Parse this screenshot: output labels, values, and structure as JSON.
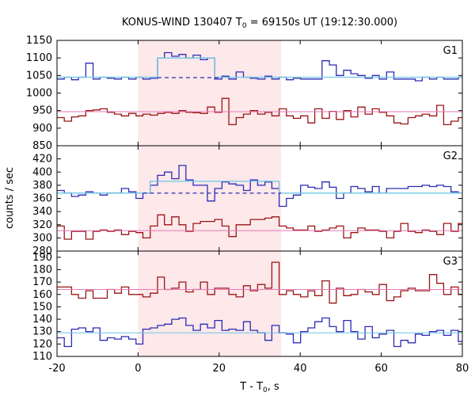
{
  "chart_data": {
    "type": "line",
    "title": "KONUS-WIND 130407 T",
    "title_sub": "0",
    "title_rest": " = 69150s UT (19:12:30.000)",
    "xlabel": "T - T",
    "xlabel_sub": "0",
    "xlabel_rest": ", s",
    "ylabel": "counts / sec",
    "xlim": [
      -20,
      80
    ],
    "x_ticks": [
      "-20",
      "0",
      "20",
      "40",
      "60",
      "80"
    ],
    "x_tick_values": [
      -20,
      0,
      20,
      40,
      60,
      80
    ],
    "shaded_interval": [
      0,
      35.3
    ],
    "colors": {
      "blue": "#2b2bb5",
      "red": "#9b1414",
      "cyan": "#6ec6e6",
      "pink": "#e67ab8",
      "shade": "#fde8ea"
    },
    "bin_edges": [
      -20,
      -18.2,
      -16.4,
      -14.7,
      -12.9,
      -11.1,
      -9.4,
      -7.6,
      -5.8,
      -4.1,
      -2.3,
      -0.5,
      1.2,
      3.0,
      4.8,
      6.5,
      8.3,
      10.1,
      11.8,
      13.6,
      15.4,
      17.1,
      18.9,
      20.7,
      22.4,
      24.2,
      26.0,
      27.7,
      29.5,
      31.3,
      33.0,
      34.8,
      36.6,
      38.3,
      40.1,
      41.9,
      43.6,
      45.4,
      47.2,
      48.9,
      50.7,
      52.5,
      54.2,
      56.0,
      57.8,
      59.5,
      61.3,
      63.1,
      64.8,
      66.6,
      68.4,
      70.1,
      71.9,
      73.7,
      75.4,
      77.2,
      79.0,
      80
    ],
    "panels": [
      {
        "label": "G1",
        "ylim": [
          850,
          1150
        ],
        "y_ticks": [
          "850",
          "900",
          "950",
          "1000",
          "1050",
          "1100",
          "1150"
        ],
        "y_tick_values": [
          850,
          900,
          950,
          1000,
          1050,
          1100,
          1150
        ],
        "series": [
          {
            "color": "blue",
            "values": [
              1040,
              1045,
              1038,
              1045,
              1085,
              1040,
              1045,
              1042,
              1040,
              1045,
              1040,
              1045,
              1040,
              1042,
              1100,
              1115,
              1105,
              1110,
              1100,
              1108,
              1095,
              1100,
              1040,
              1048,
              1040,
              1060,
              1045,
              1042,
              1040,
              1048,
              1040,
              1045,
              1038,
              1042,
              1040,
              1040,
              1040,
              1092,
              1080,
              1050,
              1065,
              1055,
              1050,
              1042,
              1050,
              1040,
              1060,
              1040,
              1040,
              1040,
              1035,
              1045,
              1040,
              1045,
              1040,
              1040,
              1045
            ]
          },
          {
            "color": "red",
            "values": [
              930,
              920,
              932,
              935,
              950,
              952,
              955,
              945,
              940,
              935,
              942,
              935,
              940,
              937,
              942,
              945,
              942,
              950,
              945,
              944,
              942,
              960,
              945,
              985,
              910,
              930,
              940,
              950,
              940,
              945,
              935,
              955,
              935,
              928,
              935,
              915,
              955,
              928,
              948,
              925,
              950,
              932,
              960,
              940,
              955,
              945,
              935,
              915,
              912,
              930,
              935,
              940,
              935,
              965,
              910,
              920,
              930
            ]
          },
          {
            "color": "cyan",
            "style": "step",
            "values": [
              1045,
              1045,
              1045,
              1045,
              1045,
              1045,
              1045,
              1045,
              1045,
              1045,
              1045,
              1045,
              1045,
              1045,
              1100,
              1100,
              1100,
              1100,
              1100,
              1100,
              1100,
              1100,
              1045,
              1045,
              1045,
              1045,
              1045,
              1045,
              1045,
              1045,
              1045,
              1045,
              1045,
              1045,
              1045,
              1045,
              1045,
              1045,
              1045,
              1045,
              1045,
              1045,
              1045,
              1045,
              1045,
              1045,
              1045,
              1045,
              1045,
              1045,
              1045,
              1045,
              1045,
              1045,
              1045,
              1045,
              1045
            ]
          },
          {
            "color": "pink",
            "style": "flat",
            "values": [
              947
            ]
          },
          {
            "color": "blue",
            "style": "dashed",
            "x_range": [
              4.8,
              20.7
            ],
            "values": [
              1044
            ]
          }
        ]
      },
      {
        "label": "G2",
        "ylim": [
          280,
          440
        ],
        "y_ticks": [
          "280",
          "300",
          "320",
          "340",
          "360",
          "380",
          "400",
          "420"
        ],
        "y_tick_values": [
          280,
          300,
          320,
          340,
          360,
          380,
          400,
          420
        ],
        "series": [
          {
            "color": "blue",
            "values": [
              372,
              368,
              363,
              365,
              370,
              368,
              365,
              368,
              368,
              375,
              370,
              360,
              368,
              380,
              395,
              400,
              390,
              410,
              388,
              380,
              380,
              356,
              375,
              385,
              382,
              380,
              372,
              388,
              380,
              385,
              375,
              348,
              360,
              365,
              380,
              377,
              375,
              385,
              377,
              360,
              368,
              378,
              375,
              370,
              378,
              368,
              375,
              375,
              375,
              378,
              378,
              380,
              378,
              380,
              378,
              370,
              368
            ]
          },
          {
            "color": "red",
            "values": [
              318,
              298,
              310,
              310,
              298,
              310,
              312,
              310,
              312,
              305,
              310,
              308,
              300,
              318,
              335,
              320,
              332,
              320,
              310,
              322,
              325,
              325,
              328,
              318,
              302,
              320,
              320,
              328,
              328,
              330,
              332,
              318,
              315,
              312,
              312,
              318,
              310,
              312,
              315,
              318,
              300,
              308,
              315,
              312,
              312,
              310,
              300,
              310,
              322,
              310,
              308,
              312,
              310,
              305,
              322,
              310,
              322
            ]
          },
          {
            "color": "cyan",
            "style": "step",
            "values": [
              368,
              368,
              368,
              368,
              368,
              368,
              368,
              368,
              368,
              368,
              368,
              368,
              368,
              386,
              386,
              386,
              386,
              386,
              386,
              386,
              386,
              386,
              386,
              386,
              386,
              386,
              386,
              386,
              386,
              386,
              386,
              368,
              368,
              368,
              368,
              368,
              368,
              368,
              368,
              368,
              368,
              368,
              368,
              368,
              368,
              368,
              368,
              368,
              368,
              368,
              368,
              368,
              368,
              368,
              368,
              368,
              368
            ]
          },
          {
            "color": "pink",
            "style": "flat",
            "values": [
              311
            ]
          },
          {
            "color": "blue",
            "style": "dashed",
            "x_range": [
              1.2,
              35.3
            ],
            "values": [
              368
            ]
          }
        ]
      },
      {
        "label": "G3",
        "ylim": [
          110,
          195
        ],
        "y_ticks": [
          "110",
          "120",
          "130",
          "140",
          "150",
          "160",
          "170",
          "180",
          "190"
        ],
        "y_tick_values": [
          110,
          120,
          130,
          140,
          150,
          160,
          170,
          180,
          190
        ],
        "series": [
          {
            "color": "blue",
            "values": [
              125,
              118,
              132,
              133,
              130,
              133,
              123,
              125,
              124,
              126,
              124,
              120,
              132,
              133,
              135,
              136,
              140,
              141,
              135,
              131,
              136,
              133,
              139,
              131,
              132,
              131,
              138,
              131,
              129,
              123,
              135,
              129,
              128,
              121,
              130,
              133,
              138,
              141,
              134,
              130,
              139,
              130,
              124,
              134,
              125,
              128,
              131,
              118,
              123,
              121,
              128,
              127,
              130,
              131,
              127,
              131,
              122
            ]
          },
          {
            "color": "red",
            "values": [
              166,
              166,
              160,
              157,
              163,
              157,
              157,
              164,
              161,
              166,
              160,
              160,
              158,
              161,
              174,
              164,
              165,
              170,
              162,
              164,
              170,
              160,
              165,
              165,
              160,
              158,
              167,
              163,
              168,
              165,
              186,
              160,
              163,
              160,
              158,
              163,
              159,
              171,
              153,
              165,
              159,
              160,
              164,
              162,
              160,
              168,
              155,
              158,
              163,
              165,
              163,
              163,
              176,
              169,
              160,
              166,
              160
            ]
          },
          {
            "color": "cyan",
            "style": "flat",
            "values": [
              129
            ]
          },
          {
            "color": "pink",
            "style": "flat",
            "values": [
              164
            ]
          }
        ]
      }
    ]
  }
}
